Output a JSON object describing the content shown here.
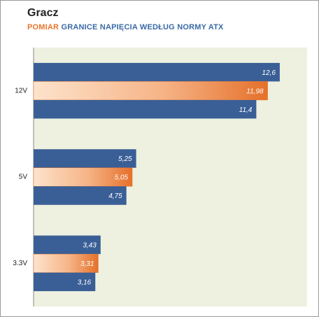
{
  "chart_data": {
    "type": "bar",
    "orientation": "horizontal",
    "title": "Gracz",
    "categories": [
      "12V",
      "5V",
      "3.3V"
    ],
    "series": [
      {
        "name": "GRANICE NAPIĘCIA WEDŁUG NORMY ATX",
        "color": "#3a5f96",
        "values": [
          12.6,
          5.25,
          3.43
        ],
        "value_labels": [
          "12,6",
          "5,25",
          "3,43"
        ]
      },
      {
        "name": "POMIAR",
        "color": "#e8762c",
        "values": [
          11.98,
          5.05,
          3.31
        ],
        "value_labels": [
          "11,98",
          "5,05",
          "3,31"
        ]
      },
      {
        "color": "#3a5f96",
        "values": [
          11.4,
          4.75,
          3.16
        ],
        "value_labels": [
          "11,4",
          "4,75",
          "3,16"
        ]
      }
    ],
    "xlim": [
      0,
      14
    ]
  }
}
